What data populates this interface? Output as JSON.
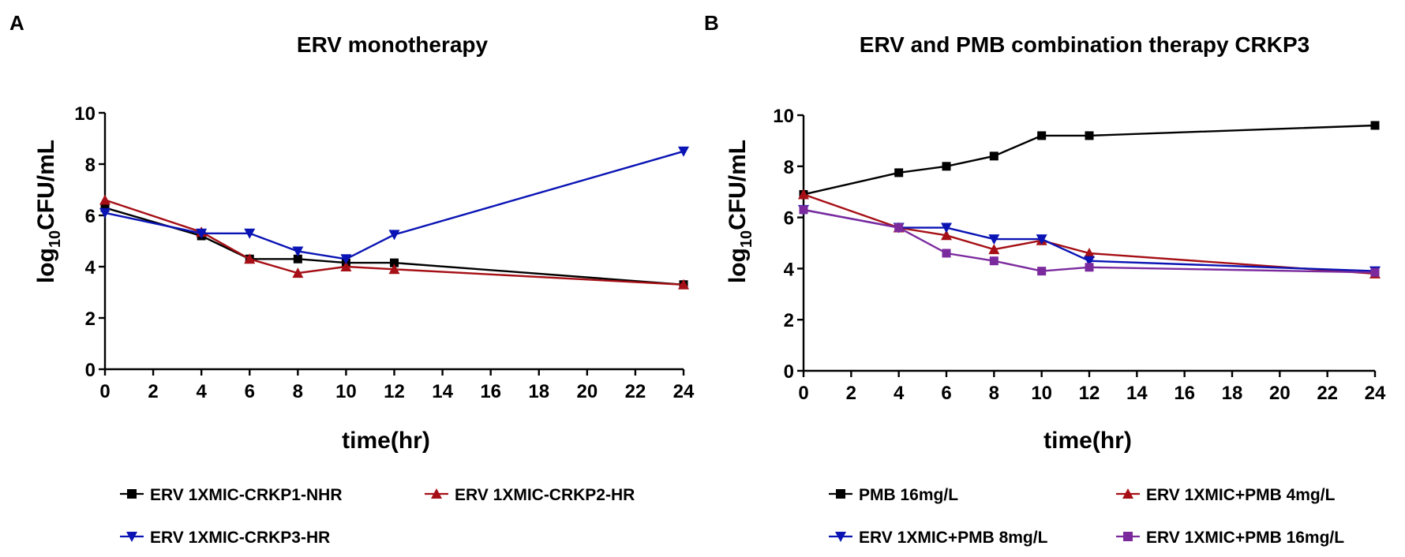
{
  "chart_data": [
    {
      "type": "line",
      "panel": "A",
      "title": "ERV monotherapy",
      "xlabel": "time(hr)",
      "ylabel": {
        "prefix": "log",
        "sub": "10",
        "suffix": "CFU/mL"
      },
      "xlim": [
        0,
        24
      ],
      "ylim": [
        0,
        10
      ],
      "xticks": [
        0,
        2,
        4,
        6,
        8,
        10,
        12,
        14,
        16,
        18,
        20,
        22,
        24
      ],
      "yticks": [
        0,
        2,
        4,
        6,
        8,
        10
      ],
      "grid": false,
      "legend_position": "bottom",
      "series": [
        {
          "name": "ERV 1XMIC-CRKP1-NHR",
          "color": "#000000",
          "marker": "square",
          "x": [
            0,
            4,
            6,
            8,
            10,
            12,
            24
          ],
          "values": [
            6.3,
            5.2,
            4.3,
            4.3,
            4.15,
            4.15,
            3.3
          ]
        },
        {
          "name": "ERV 1XMIC-CRKP2-HR",
          "color": "#a50f15",
          "marker": "triangle-up",
          "x": [
            0,
            4,
            6,
            8,
            10,
            12,
            24
          ],
          "values": [
            6.6,
            5.35,
            4.3,
            3.75,
            4.0,
            3.9,
            3.3
          ]
        },
        {
          "name": "ERV 1XMIC-CRKP3-HR",
          "color": "#0a14b4",
          "marker": "triangle-down",
          "x": [
            0,
            4,
            6,
            8,
            10,
            12,
            24
          ],
          "values": [
            6.1,
            5.3,
            5.3,
            4.6,
            4.3,
            5.25,
            8.5
          ]
        }
      ]
    },
    {
      "type": "line",
      "panel": "B",
      "title": "ERV and PMB combination therapy CRKP3",
      "xlabel": "time(hr)",
      "ylabel": {
        "prefix": "log",
        "sub": "10",
        "suffix": "CFU/mL"
      },
      "xlim": [
        0,
        24
      ],
      "ylim": [
        0,
        10
      ],
      "xticks": [
        0,
        2,
        4,
        6,
        8,
        10,
        12,
        14,
        16,
        18,
        20,
        22,
        24
      ],
      "yticks": [
        0,
        2,
        4,
        6,
        8,
        10
      ],
      "grid": false,
      "legend_position": "bottom",
      "series": [
        {
          "name": "PMB 16mg/L",
          "color": "#000000",
          "marker": "square",
          "x": [
            0,
            4,
            6,
            8,
            10,
            12,
            24
          ],
          "values": [
            6.9,
            7.75,
            8.0,
            8.4,
            9.2,
            9.2,
            9.6
          ]
        },
        {
          "name": "ERV 1XMIC+PMB 4mg/L",
          "color": "#a50f15",
          "marker": "triangle-up",
          "x": [
            0,
            4,
            6,
            8,
            10,
            12,
            24
          ],
          "values": [
            6.9,
            5.6,
            5.3,
            4.75,
            5.1,
            4.6,
            3.8
          ]
        },
        {
          "name": "ERV 1XMIC+PMB 8mg/L",
          "color": "#0a14b4",
          "marker": "triangle-down",
          "x": [
            0,
            4,
            6,
            8,
            10,
            12,
            24
          ],
          "values": [
            6.3,
            5.6,
            5.6,
            5.15,
            5.15,
            4.3,
            3.9
          ]
        },
        {
          "name": "ERV 1XMIC+PMB 16mg/L",
          "color": "#7b2a9e",
          "marker": "square",
          "x": [
            0,
            4,
            6,
            8,
            10,
            12,
            24
          ],
          "values": [
            6.3,
            5.6,
            4.6,
            4.3,
            3.9,
            4.05,
            3.85
          ]
        }
      ]
    }
  ]
}
